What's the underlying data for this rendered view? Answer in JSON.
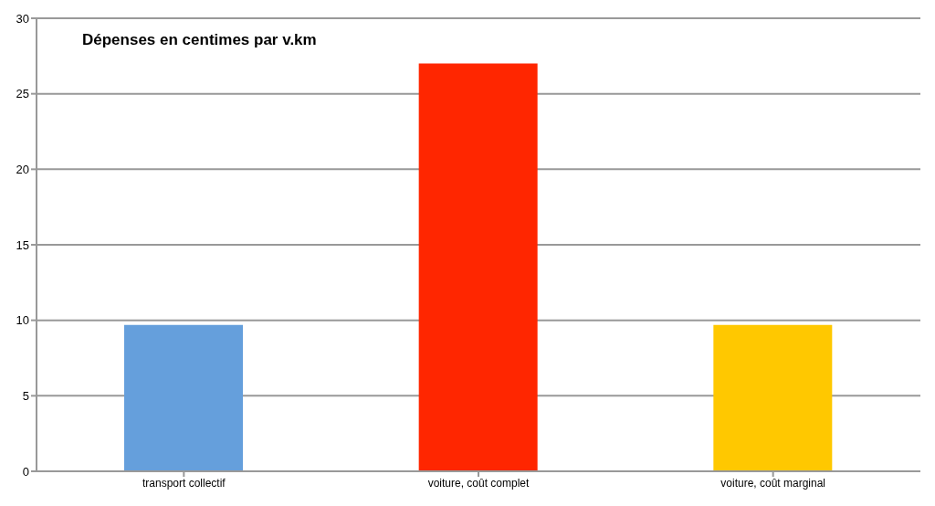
{
  "chart_data": {
    "type": "bar",
    "title": "Dépenses en centimes par v.km",
    "categories": [
      "transport collectif",
      "voiture, coût complet",
      "voiture, coût marginal"
    ],
    "values": [
      9.7,
      27,
      9.7
    ],
    "colors": [
      "#659fdc",
      "#ff2600",
      "#ffc800"
    ],
    "ylim": [
      0,
      30
    ],
    "yticks": [
      0,
      5,
      10,
      15,
      20,
      25,
      30
    ],
    "grid": "y"
  }
}
